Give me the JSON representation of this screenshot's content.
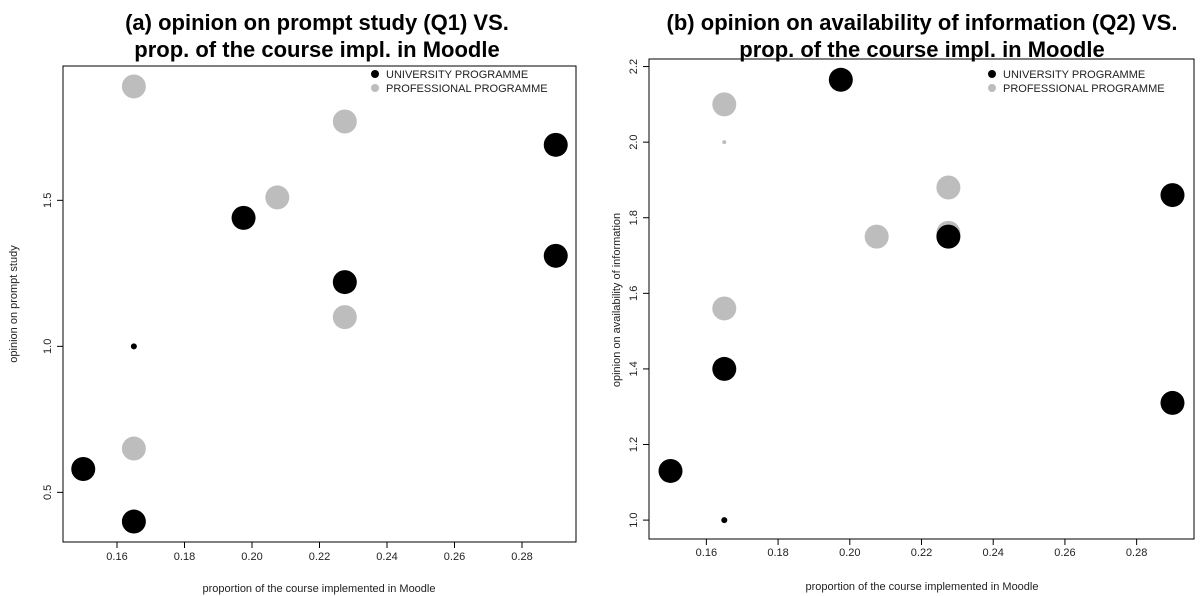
{
  "chart_data": [
    {
      "type": "scatter",
      "title": "(a) opinion on prompt study (Q1) VS.\nprop. of the course impl. in Moodle",
      "title_lines": [
        "(a) opinion on prompt study (Q1) VS.",
        "prop. of the course impl. in Moodle"
      ],
      "xlabel": "proportion of the course implemented in Moodle",
      "ylabel": "opinion on prompt study",
      "xlim": [
        0.144,
        0.296
      ],
      "ylim": [
        0.33,
        1.96
      ],
      "xticks": [
        0.16,
        0.18,
        0.2,
        0.22,
        0.24,
        0.26,
        0.28
      ],
      "xtick_labels": [
        "0.16",
        "0.18",
        "0.20",
        "0.22",
        "0.24",
        "0.26",
        "0.28"
      ],
      "yticks": [
        0.5,
        1.0,
        1.5
      ],
      "ytick_labels": [
        "0.5",
        "1.0",
        "1.5"
      ],
      "legend": {
        "placement": "top-right",
        "entries": [
          {
            "label": "UNIVERSITY PROGRAMME",
            "color": "#000000"
          },
          {
            "label": "PROFESSIONAL PROGRAMME",
            "color": "#bdbdbd"
          }
        ]
      },
      "series": [
        {
          "name": "UNIVERSITY PROGRAMME",
          "color": "#000000",
          "points": [
            {
              "x": 0.15,
              "y": 0.58,
              "size": "large"
            },
            {
              "x": 0.165,
              "y": 0.4,
              "size": "large"
            },
            {
              "x": 0.165,
              "y": 1.0,
              "size": "small"
            },
            {
              "x": 0.1975,
              "y": 1.44,
              "size": "large"
            },
            {
              "x": 0.2275,
              "y": 1.22,
              "size": "large"
            },
            {
              "x": 0.29,
              "y": 1.69,
              "size": "large"
            },
            {
              "x": 0.29,
              "y": 1.31,
              "size": "large"
            }
          ]
        },
        {
          "name": "PROFESSIONAL PROGRAMME",
          "color": "#bdbdbd",
          "points": [
            {
              "x": 0.165,
              "y": 1.89,
              "size": "large"
            },
            {
              "x": 0.165,
              "y": 0.65,
              "size": "large"
            },
            {
              "x": 0.2075,
              "y": 1.51,
              "size": "large"
            },
            {
              "x": 0.2275,
              "y": 1.77,
              "size": "large"
            },
            {
              "x": 0.2275,
              "y": 1.1,
              "size": "large"
            }
          ]
        }
      ]
    },
    {
      "type": "scatter",
      "title": "(b) opinion on availability of information (Q2) VS.\nprop. of the course impl. in Moodle",
      "title_lines": [
        "(b) opinion on availability of information (Q2) VS.",
        "prop. of the course impl. in Moodle"
      ],
      "xlabel": "proportion of the course implemented in Moodle",
      "ylabel": "opinion on availability of information",
      "xlim": [
        0.144,
        0.296
      ],
      "ylim": [
        0.95,
        2.22
      ],
      "xticks": [
        0.16,
        0.18,
        0.2,
        0.22,
        0.24,
        0.26,
        0.28
      ],
      "xtick_labels": [
        "0.16",
        "0.18",
        "0.20",
        "0.22",
        "0.24",
        "0.26",
        "0.28"
      ],
      "yticks": [
        1.0,
        1.2,
        1.4,
        1.6,
        1.8,
        2.0,
        2.2
      ],
      "ytick_labels": [
        "1.0",
        "1.2",
        "1.4",
        "1.6",
        "1.8",
        "2.0",
        "2.2"
      ],
      "legend": {
        "placement": "top-right",
        "entries": [
          {
            "label": "UNIVERSITY PROGRAMME",
            "color": "#000000"
          },
          {
            "label": "PROFESSIONAL PROGRAMME",
            "color": "#bdbdbd"
          }
        ]
      },
      "series": [
        {
          "name": "UNIVERSITY PROGRAMME",
          "color": "#000000",
          "points": [
            {
              "x": 0.15,
              "y": 1.13,
              "size": "large"
            },
            {
              "x": 0.165,
              "y": 1.4,
              "size": "large"
            },
            {
              "x": 0.165,
              "y": 1.0,
              "size": "small"
            },
            {
              "x": 0.1975,
              "y": 2.165,
              "size": "large"
            },
            {
              "x": 0.2275,
              "y": 1.75,
              "size": "large"
            },
            {
              "x": 0.29,
              "y": 1.86,
              "size": "large"
            },
            {
              "x": 0.29,
              "y": 1.31,
              "size": "large"
            }
          ]
        },
        {
          "name": "PROFESSIONAL PROGRAMME",
          "color": "#bdbdbd",
          "points": [
            {
              "x": 0.165,
              "y": 2.1,
              "size": "large"
            },
            {
              "x": 0.165,
              "y": 2.0,
              "size": "tiny"
            },
            {
              "x": 0.165,
              "y": 1.56,
              "size": "large"
            },
            {
              "x": 0.2075,
              "y": 1.75,
              "size": "large"
            },
            {
              "x": 0.2275,
              "y": 1.88,
              "size": "large"
            },
            {
              "x": 0.2275,
              "y": 1.76,
              "size": "large"
            }
          ]
        }
      ]
    }
  ]
}
